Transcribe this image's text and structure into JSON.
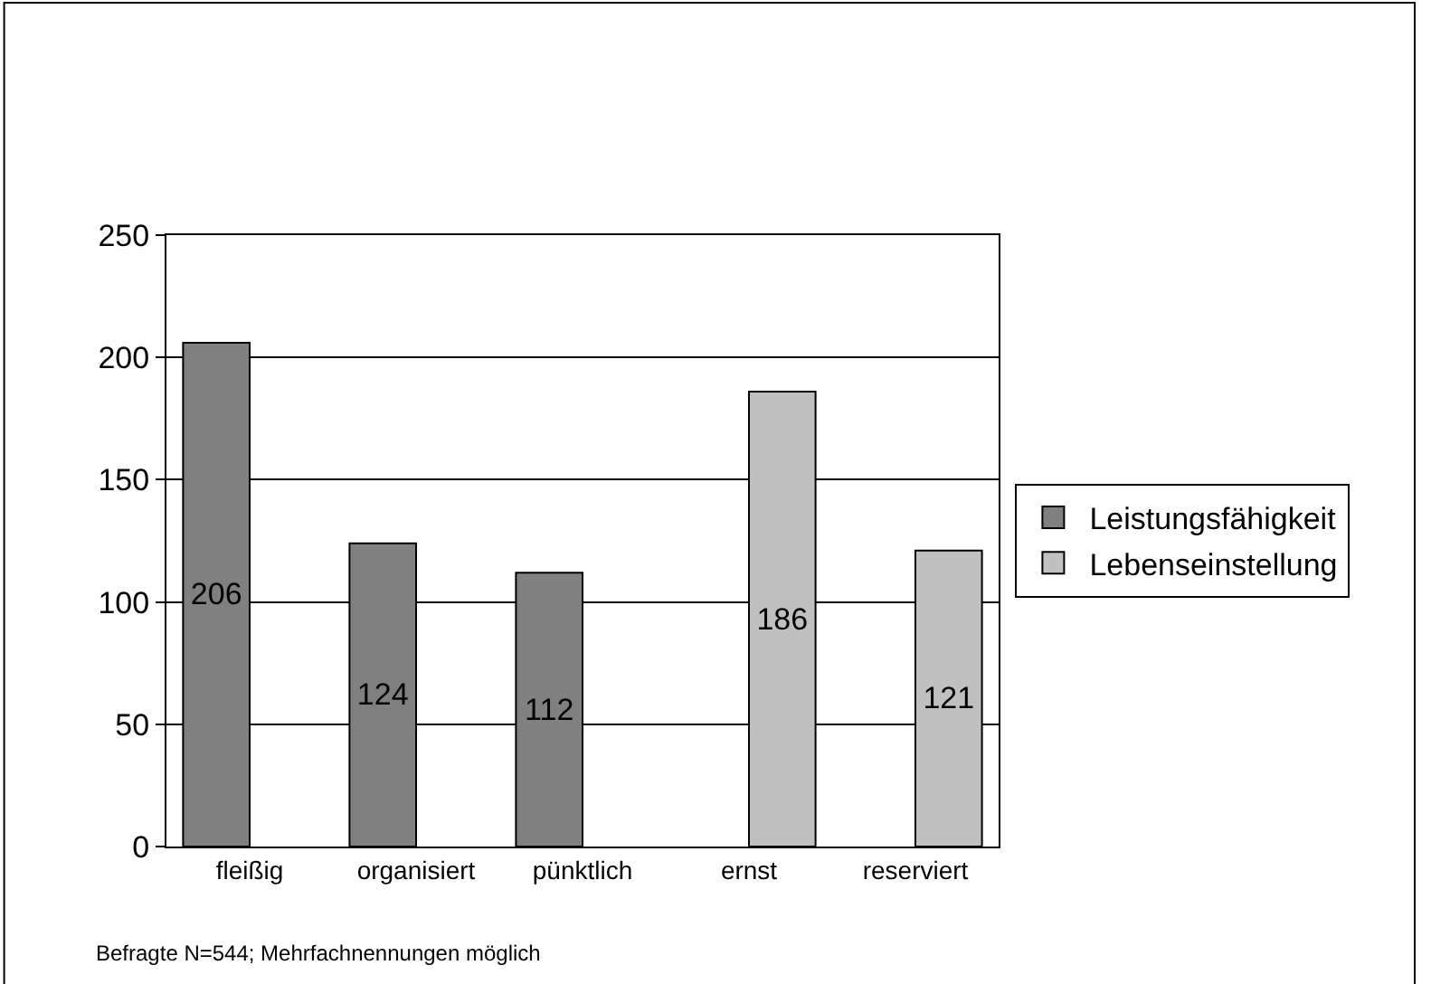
{
  "chart_data": {
    "type": "bar",
    "categories": [
      "fleißig",
      "organisiert",
      "pünktlich",
      "ernst",
      "reserviert"
    ],
    "series": [
      {
        "name": "Leistungsfähigkeit",
        "color": "#808080",
        "values": [
          206,
          124,
          112,
          null,
          null
        ]
      },
      {
        "name": "Lebenseinstellung",
        "color": "#c0c0c0",
        "values": [
          null,
          null,
          null,
          186,
          121
        ]
      }
    ],
    "ylim": [
      0,
      250
    ],
    "yticks": [
      0,
      50,
      100,
      150,
      200,
      250
    ],
    "grid": "y",
    "legend": "right",
    "data_labels": true,
    "annotations": [
      "Befragte N=544; Mehrfachnennungen möglich"
    ]
  }
}
